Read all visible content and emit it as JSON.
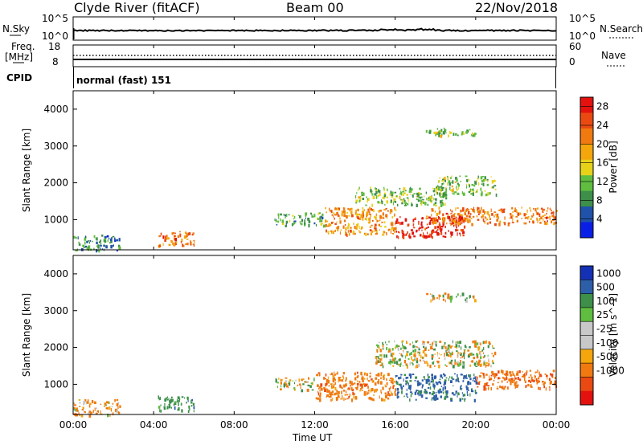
{
  "header": {
    "station": "Clyde River (fitACF)",
    "beam": "Beam 00",
    "date": "22/Nov/2018"
  },
  "nsky_panel": {
    "left_label": "N.Sky",
    "right_label": "N.Search",
    "left_ticks": [
      "10^5",
      "10^0"
    ],
    "right_ticks": [
      "10^5",
      "10^0"
    ]
  },
  "freq_panel": {
    "left_label_1": "Freq.",
    "left_label_2": "[MHz]",
    "right_label": "Nave",
    "left_ticks": [
      "18",
      "8"
    ],
    "right_ticks": [
      "60",
      "0"
    ]
  },
  "cpid": {
    "label": "CPID",
    "value": "normal (fast) 151"
  },
  "colors": {
    "power_scale": [
      "#0a1fe6",
      "#1f52a8",
      "#3d8f4a",
      "#5fbd3f",
      "#e7d21a",
      "#f4a60c",
      "#f07a10",
      "#ea4a12",
      "#e3120f"
    ],
    "velocity_scale": [
      "#e3120f",
      "#ea4a12",
      "#f07a10",
      "#f4a60c",
      "#c8c8c8",
      "#c8c8c8",
      "#5fbd3f",
      "#3d8f4a",
      "#2d5ea8",
      "#1431b5"
    ]
  },
  "chart_data": [
    {
      "type": "heatmap",
      "name": "power",
      "xlabel": "",
      "ylabel": "Slant Range [km]",
      "x_ticks": [
        "00:00",
        "04:00",
        "08:00",
        "12:00",
        "16:00",
        "20:00",
        "00:00"
      ],
      "y_ticks": [
        1000,
        2000,
        3000,
        4000
      ],
      "ylim": [
        180,
        4500
      ],
      "colorbar": {
        "label": "Power [dB]",
        "ticks": [
          4,
          8,
          12,
          16,
          20,
          24,
          28
        ],
        "range": [
          0,
          30
        ]
      },
      "regions": [
        {
          "t": [
            0.0,
            2.3
          ],
          "r": [
            180,
            600
          ],
          "level": 8
        },
        {
          "t": [
            4.2,
            6.0
          ],
          "r": [
            300,
            700
          ],
          "level": 22
        },
        {
          "t": [
            10.0,
            12.5
          ],
          "r": [
            850,
            1200
          ],
          "level": 10
        },
        {
          "t": [
            12.5,
            16.0
          ],
          "r": [
            600,
            1350
          ],
          "level": 20
        },
        {
          "t": [
            16.0,
            19.5
          ],
          "r": [
            550,
            1100
          ],
          "level": 28
        },
        {
          "t": [
            17.5,
            24.0
          ],
          "r": [
            900,
            1350
          ],
          "level": 22
        },
        {
          "t": [
            14.0,
            18.5
          ],
          "r": [
            1400,
            1900
          ],
          "level": 12
        },
        {
          "t": [
            18.0,
            21.0
          ],
          "r": [
            1700,
            2200
          ],
          "level": 12
        },
        {
          "t": [
            17.5,
            20.0
          ],
          "r": [
            3300,
            3500
          ],
          "level": 12
        }
      ]
    },
    {
      "type": "heatmap",
      "name": "velocity",
      "xlabel": "Time UT",
      "ylabel": "Slant Range [km]",
      "x_ticks": [
        "00:00",
        "04:00",
        "08:00",
        "12:00",
        "16:00",
        "20:00",
        "00:00"
      ],
      "y_ticks": [
        1000,
        2000,
        3000,
        4000
      ],
      "ylim": [
        180,
        4500
      ],
      "colorbar": {
        "label": "Velocity [m s^-1]",
        "ticks": [
          1000,
          500,
          100,
          25,
          -25,
          -100,
          -500,
          -1000
        ]
      },
      "regions": [
        {
          "t": [
            0.0,
            2.3
          ],
          "r": [
            180,
            600
          ],
          "v": -200
        },
        {
          "t": [
            4.2,
            6.0
          ],
          "r": [
            300,
            700
          ],
          "v": 300
        },
        {
          "t": [
            10.0,
            12.0
          ],
          "r": [
            850,
            1200
          ],
          "v": 0
        },
        {
          "t": [
            12.0,
            16.0
          ],
          "r": [
            600,
            1350
          ],
          "v": -300
        },
        {
          "t": [
            16.0,
            20.0
          ],
          "r": [
            600,
            1300
          ],
          "v": 600
        },
        {
          "t": [
            20.0,
            24.0
          ],
          "r": [
            900,
            1400
          ],
          "v": -400
        },
        {
          "t": [
            15.0,
            21.0
          ],
          "r": [
            1500,
            2200
          ],
          "v": 0
        },
        {
          "t": [
            17.5,
            20.0
          ],
          "r": [
            3300,
            3500
          ],
          "v": 0
        }
      ]
    }
  ]
}
